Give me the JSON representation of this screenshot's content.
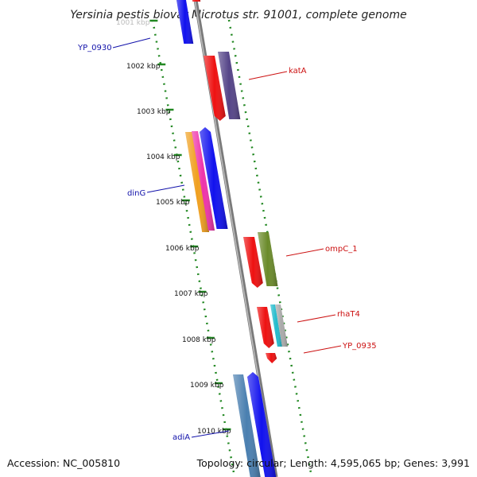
{
  "title": "Yersinia pestis biovar Microtus str. 91001, complete genome",
  "ticks": [
    {
      "label": "1001 kbp",
      "faded": true
    },
    {
      "label": "1002 kbp"
    },
    {
      "label": "1003 kbp"
    },
    {
      "label": "1004 kbp"
    },
    {
      "label": "1005 kbp"
    },
    {
      "label": "1006 kbp"
    },
    {
      "label": "1007 kbp"
    },
    {
      "label": "1008 kbp"
    },
    {
      "label": "1009 kbp"
    },
    {
      "label": "1010 kbp"
    }
  ],
  "gene_labels": [
    {
      "text": "YP_0930",
      "color": "#1111aa"
    },
    {
      "text": "katA",
      "color": "#cc1111"
    },
    {
      "text": "dinG",
      "color": "#1111aa"
    },
    {
      "text": "ompC_1",
      "color": "#cc1111"
    },
    {
      "text": "rhaT4",
      "color": "#cc1111"
    },
    {
      "text": "YP_0935",
      "color": "#cc1111"
    },
    {
      "text": "adiA",
      "color": "#1111aa"
    }
  ],
  "colors": {
    "backbone": "#888888",
    "tick_marks": "#228822",
    "red": "#ee1111",
    "blue": "#1111ee",
    "purple": "#554488",
    "orange": "#f0a020",
    "magenta": "#ee33aa",
    "olive": "#6a8a2a",
    "cyan": "#22bbcc",
    "grey": "#aaaaaa",
    "steel": "#4a7fb0"
  },
  "footer": {
    "accession": "Accession: NC_005810",
    "topology": "Topology: circular; Length: 4,595,065 bp; Genes: 3,991"
  }
}
